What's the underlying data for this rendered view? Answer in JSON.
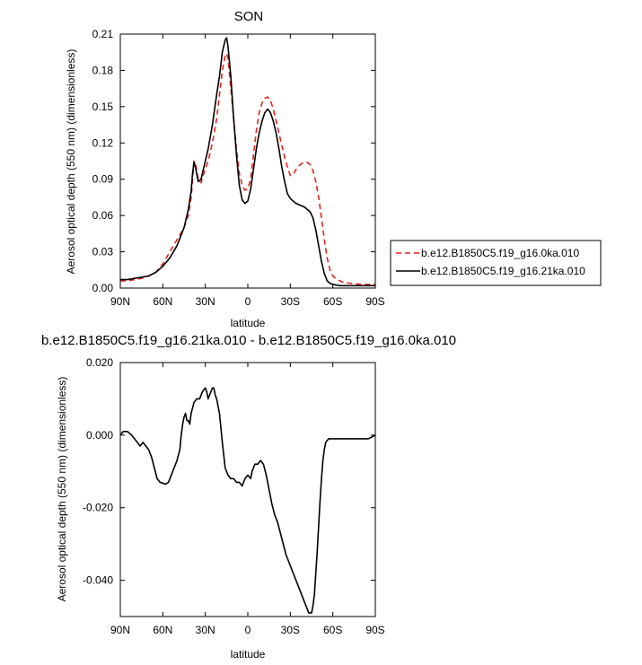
{
  "chart_data": [
    {
      "type": "line",
      "title": "SON",
      "xlabel": "latitude",
      "ylabel": "Aerosol optical depth (550 nm) (dimensionless)",
      "xlim": [
        90,
        -90
      ],
      "ylim": [
        0,
        0.21
      ],
      "x_ticks": [
        90,
        60,
        30,
        0,
        -30,
        -60,
        -90
      ],
      "x_tick_labels": [
        "90N",
        "60N",
        "30N",
        "0",
        "30S",
        "60S",
        "90S"
      ],
      "y_ticks": [
        0,
        0.03,
        0.06,
        0.09,
        0.12,
        0.15,
        0.18,
        0.21
      ],
      "y_tick_labels": [
        "0.00",
        "0.03",
        "0.06",
        "0.09",
        "0.12",
        "0.15",
        "0.18",
        "0.21"
      ],
      "legend_position": "right",
      "series": [
        {
          "name": "b.e12.B1850C5.f19_g16.0ka.010",
          "color": "#e8211f",
          "dash": "dashed",
          "points": [
            [
              90,
              0.006
            ],
            [
              85,
              0.006
            ],
            [
              80,
              0.007
            ],
            [
              75,
              0.008
            ],
            [
              70,
              0.01
            ],
            [
              65,
              0.013
            ],
            [
              60,
              0.02
            ],
            [
              55,
              0.03
            ],
            [
              50,
              0.04
            ],
            [
              45,
              0.05
            ],
            [
              42,
              0.06
            ],
            [
              40,
              0.075
            ],
            [
              39,
              0.09
            ],
            [
              38,
              0.105
            ],
            [
              37,
              0.103
            ],
            [
              35,
              0.09
            ],
            [
              33,
              0.087
            ],
            [
              31,
              0.095
            ],
            [
              28,
              0.105
            ],
            [
              25,
              0.12
            ],
            [
              22,
              0.14
            ],
            [
              20,
              0.16
            ],
            [
              18,
              0.18
            ],
            [
              16,
              0.192
            ],
            [
              15,
              0.194
            ],
            [
              14,
              0.19
            ],
            [
              12,
              0.165
            ],
            [
              10,
              0.14
            ],
            [
              8,
              0.115
            ],
            [
              6,
              0.095
            ],
            [
              4,
              0.085
            ],
            [
              2,
              0.081
            ],
            [
              0,
              0.082
            ],
            [
              -2,
              0.09
            ],
            [
              -4,
              0.11
            ],
            [
              -6,
              0.13
            ],
            [
              -8,
              0.145
            ],
            [
              -10,
              0.153
            ],
            [
              -12,
              0.157
            ],
            [
              -14,
              0.158
            ],
            [
              -16,
              0.155
            ],
            [
              -18,
              0.148
            ],
            [
              -20,
              0.138
            ],
            [
              -22,
              0.128
            ],
            [
              -24,
              0.118
            ],
            [
              -26,
              0.108
            ],
            [
              -28,
              0.1
            ],
            [
              -30,
              0.093
            ],
            [
              -32,
              0.094
            ],
            [
              -34,
              0.098
            ],
            [
              -36,
              0.101
            ],
            [
              -38,
              0.103
            ],
            [
              -40,
              0.104
            ],
            [
              -42,
              0.104
            ],
            [
              -44,
              0.102
            ],
            [
              -46,
              0.097
            ],
            [
              -48,
              0.088
            ],
            [
              -50,
              0.075
            ],
            [
              -52,
              0.058
            ],
            [
              -54,
              0.04
            ],
            [
              -56,
              0.025
            ],
            [
              -58,
              0.015
            ],
            [
              -60,
              0.01
            ],
            [
              -63,
              0.007
            ],
            [
              -67,
              0.005
            ],
            [
              -72,
              0.004
            ],
            [
              -80,
              0.003
            ],
            [
              -90,
              0.003
            ]
          ]
        },
        {
          "name": "b.e12.B1850C5.f19_g16.21ka.010",
          "color": "#000000",
          "dash": "solid",
          "points": [
            [
              90,
              0.007
            ],
            [
              85,
              0.007
            ],
            [
              80,
              0.008
            ],
            [
              75,
              0.009
            ],
            [
              70,
              0.01
            ],
            [
              65,
              0.013
            ],
            [
              60,
              0.018
            ],
            [
              55,
              0.025
            ],
            [
              50,
              0.035
            ],
            [
              45,
              0.05
            ],
            [
              42,
              0.065
            ],
            [
              40,
              0.08
            ],
            [
              39,
              0.095
            ],
            [
              38,
              0.104
            ],
            [
              37,
              0.1
            ],
            [
              35,
              0.088
            ],
            [
              33,
              0.09
            ],
            [
              31,
              0.1
            ],
            [
              28,
              0.115
            ],
            [
              25,
              0.135
            ],
            [
              22,
              0.16
            ],
            [
              20,
              0.175
            ],
            [
              18,
              0.195
            ],
            [
              16,
              0.205
            ],
            [
              15,
              0.207
            ],
            [
              14,
              0.2
            ],
            [
              12,
              0.175
            ],
            [
              10,
              0.14
            ],
            [
              8,
              0.11
            ],
            [
              6,
              0.085
            ],
            [
              4,
              0.073
            ],
            [
              2,
              0.07
            ],
            [
              0,
              0.072
            ],
            [
              -2,
              0.082
            ],
            [
              -4,
              0.098
            ],
            [
              -6,
              0.115
            ],
            [
              -8,
              0.128
            ],
            [
              -10,
              0.138
            ],
            [
              -12,
              0.145
            ],
            [
              -14,
              0.148
            ],
            [
              -16,
              0.145
            ],
            [
              -18,
              0.138
            ],
            [
              -20,
              0.128
            ],
            [
              -22,
              0.115
            ],
            [
              -24,
              0.1
            ],
            [
              -26,
              0.088
            ],
            [
              -28,
              0.078
            ],
            [
              -30,
              0.074
            ],
            [
              -32,
              0.072
            ],
            [
              -34,
              0.07
            ],
            [
              -36,
              0.069
            ],
            [
              -38,
              0.068
            ],
            [
              -40,
              0.067
            ],
            [
              -42,
              0.065
            ],
            [
              -44,
              0.063
            ],
            [
              -46,
              0.058
            ],
            [
              -48,
              0.048
            ],
            [
              -50,
              0.035
            ],
            [
              -52,
              0.022
            ],
            [
              -54,
              0.012
            ],
            [
              -56,
              0.006
            ],
            [
              -58,
              0.004
            ],
            [
              -60,
              0.003
            ],
            [
              -65,
              0.002
            ],
            [
              -75,
              0.002
            ],
            [
              -90,
              0.002
            ]
          ]
        }
      ]
    },
    {
      "type": "line",
      "title": "b.e12.B1850C5.f19_g16.21ka.010 - b.e12.B1850C5.f19_g16.0ka.010",
      "xlabel": "latitude",
      "ylabel": "Aerosol optical depth (550 nm) (dimensionless)",
      "xlim": [
        90,
        -90
      ],
      "ylim": [
        -0.05,
        0.02
      ],
      "x_ticks": [
        90,
        60,
        30,
        0,
        -30,
        -60,
        -90
      ],
      "x_tick_labels": [
        "90N",
        "60N",
        "30N",
        "0",
        "30S",
        "60S",
        "90S"
      ],
      "y_ticks": [
        0.02,
        0.0,
        -0.02,
        -0.04
      ],
      "y_tick_labels": [
        "0.020",
        "0.000",
        "-0.020",
        "-0.040"
      ],
      "series": [
        {
          "color": "#000000",
          "dash": "solid",
          "points": [
            [
              90,
              0.0
            ],
            [
              88,
              0.001
            ],
            [
              85,
              0.001
            ],
            [
              82,
              0.0
            ],
            [
              80,
              -0.001
            ],
            [
              78,
              -0.002
            ],
            [
              76,
              -0.003
            ],
            [
              74,
              -0.002
            ],
            [
              72,
              -0.003
            ],
            [
              70,
              -0.004
            ],
            [
              68,
              -0.006
            ],
            [
              66,
              -0.009
            ],
            [
              64,
              -0.012
            ],
            [
              62,
              -0.013
            ],
            [
              58,
              -0.0135
            ],
            [
              56,
              -0.013
            ],
            [
              54,
              -0.011
            ],
            [
              52,
              -0.009
            ],
            [
              50,
              -0.007
            ],
            [
              48,
              -0.004
            ],
            [
              47,
              0.0
            ],
            [
              46,
              0.003
            ],
            [
              45,
              0.005
            ],
            [
              44,
              0.006
            ],
            [
              43,
              0.004
            ],
            [
              42,
              0.004
            ],
            [
              41,
              0.003
            ],
            [
              40,
              0.006
            ],
            [
              38,
              0.009
            ],
            [
              36,
              0.01
            ],
            [
              34,
              0.01
            ],
            [
              32,
              0.012
            ],
            [
              30,
              0.013
            ],
            [
              29,
              0.012
            ],
            [
              28,
              0.01
            ],
            [
              27,
              0.011
            ],
            [
              26,
              0.012
            ],
            [
              25,
              0.013
            ],
            [
              24,
              0.013
            ],
            [
              23,
              0.011
            ],
            [
              22,
              0.01
            ],
            [
              20,
              0.006
            ],
            [
              18,
              -0.002
            ],
            [
              16,
              -0.009
            ],
            [
              14,
              -0.011
            ],
            [
              12,
              -0.012
            ],
            [
              10,
              -0.012
            ],
            [
              8,
              -0.013
            ],
            [
              6,
              -0.013
            ],
            [
              4,
              -0.014
            ],
            [
              2,
              -0.012
            ],
            [
              0,
              -0.011
            ],
            [
              -2,
              -0.012
            ],
            [
              -3,
              -0.01
            ],
            [
              -5,
              -0.008
            ],
            [
              -7,
              -0.008
            ],
            [
              -9,
              -0.007
            ],
            [
              -11,
              -0.008
            ],
            [
              -13,
              -0.011
            ],
            [
              -15,
              -0.015
            ],
            [
              -17,
              -0.019
            ],
            [
              -19,
              -0.022
            ],
            [
              -21,
              -0.024
            ],
            [
              -23,
              -0.027
            ],
            [
              -25,
              -0.03
            ],
            [
              -27,
              -0.033
            ],
            [
              -29,
              -0.035
            ],
            [
              -31,
              -0.037
            ],
            [
              -33,
              -0.039
            ],
            [
              -35,
              -0.041
            ],
            [
              -37,
              -0.043
            ],
            [
              -39,
              -0.045
            ],
            [
              -41,
              -0.047
            ],
            [
              -43,
              -0.049
            ],
            [
              -45,
              -0.049
            ],
            [
              -46,
              -0.047
            ],
            [
              -47,
              -0.044
            ],
            [
              -48,
              -0.038
            ],
            [
              -49,
              -0.032
            ],
            [
              -50,
              -0.025
            ],
            [
              -51,
              -0.018
            ],
            [
              -52,
              -0.012
            ],
            [
              -53,
              -0.007
            ],
            [
              -54,
              -0.004
            ],
            [
              -55,
              -0.002
            ],
            [
              -57,
              -0.001
            ],
            [
              -60,
              -0.001
            ],
            [
              -65,
              -0.001
            ],
            [
              -70,
              -0.001
            ],
            [
              -75,
              -0.001
            ],
            [
              -80,
              -0.001
            ],
            [
              -85,
              -0.001
            ],
            [
              -90,
              0.0
            ]
          ]
        }
      ]
    }
  ]
}
